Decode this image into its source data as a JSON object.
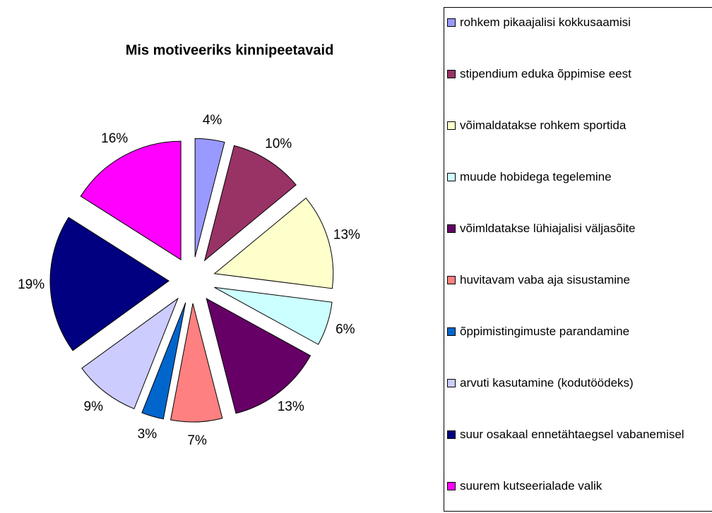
{
  "chart_data": {
    "type": "pie",
    "title": "Mis motiveeriks kinnipeetavaid",
    "categories": [
      "rohkem pikaajalisi kokkusaamisi",
      "stipendium eduka õppimise eest",
      "võimaldatakse rohkem sportida",
      "muude hobidega tegelemine",
      "võimldatakse lühiajalisi väljasõite",
      "huvitavam vaba aja sisustamine",
      "õppimistingimuste parandamine",
      "arvuti kasutamine (kodutöödeks)",
      "suur osakaal ennetähtaegsel vabanemisel",
      "suurem kutseerialade valik"
    ],
    "values": [
      4,
      10,
      13,
      6,
      13,
      7,
      3,
      9,
      19,
      16
    ],
    "value_labels": [
      "4%",
      "10%",
      "13%",
      "6%",
      "13%",
      "7%",
      "3%",
      "9%",
      "19%",
      "16%"
    ],
    "colors": [
      "#9999ff",
      "#993366",
      "#ffffcc",
      "#ccffff",
      "#660066",
      "#ff8080",
      "#0066cc",
      "#ccccff",
      "#000080",
      "#ff00ff"
    ],
    "legend": "right"
  }
}
